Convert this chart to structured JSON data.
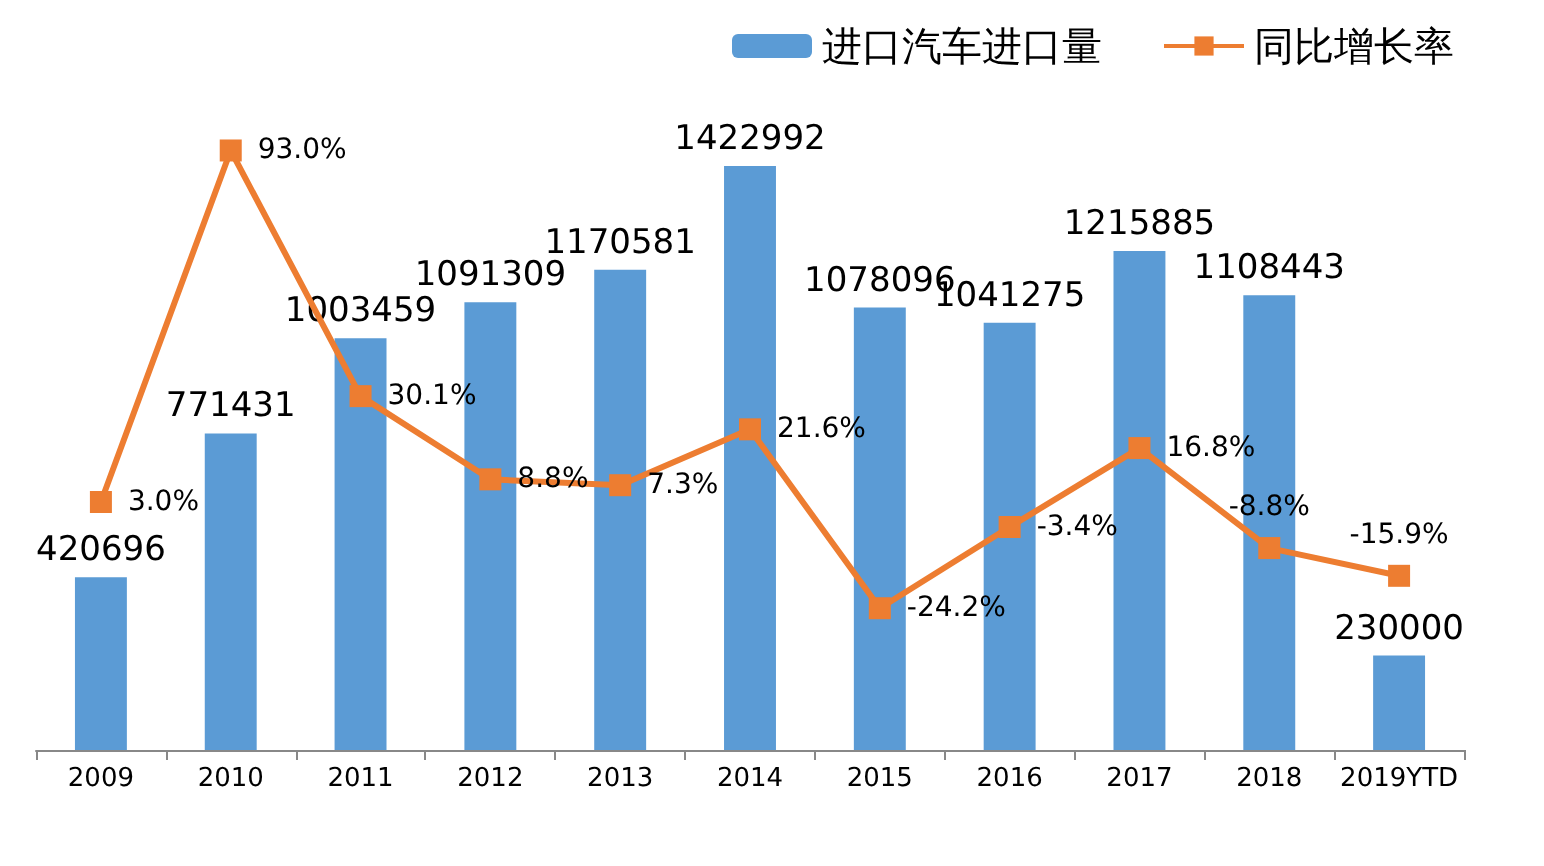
{
  "chart_data": {
    "type": "bar",
    "categories": [
      "2009",
      "2010",
      "2011",
      "2012",
      "2013",
      "2014",
      "2015",
      "2016",
      "2017",
      "2018",
      "2019YTD"
    ],
    "series": [
      {
        "name": "进口汽车进口量",
        "color": "#5b9bd5",
        "values": [
          420696,
          771431,
          1003459,
          1091309,
          1170581,
          1422992,
          1078096,
          1041275,
          1215885,
          1108443,
          230000
        ],
        "value_labels": [
          "420696",
          "771431",
          "1003459",
          "1091309",
          "1170581",
          "1422992",
          "1078096",
          "1041275",
          "1215885",
          "1108443",
          "230000"
        ]
      },
      {
        "name": "同比增长率",
        "type": "line",
        "axis": "y2",
        "color": "#ed7d31",
        "marker": "square",
        "values": [
          3.0,
          93.0,
          30.1,
          8.8,
          7.3,
          21.6,
          -24.2,
          -3.4,
          16.8,
          -8.8,
          -15.9
        ],
        "value_labels": [
          "3.0%",
          "93.0%",
          "30.1%",
          "8.8%",
          "7.3%",
          "21.6%",
          "-24.2%",
          "-3.4%",
          "16.8%",
          "-8.8%",
          "-15.9%"
        ]
      }
    ],
    "tick_labels": "x",
    "legend": "top right",
    "grid": false
  }
}
